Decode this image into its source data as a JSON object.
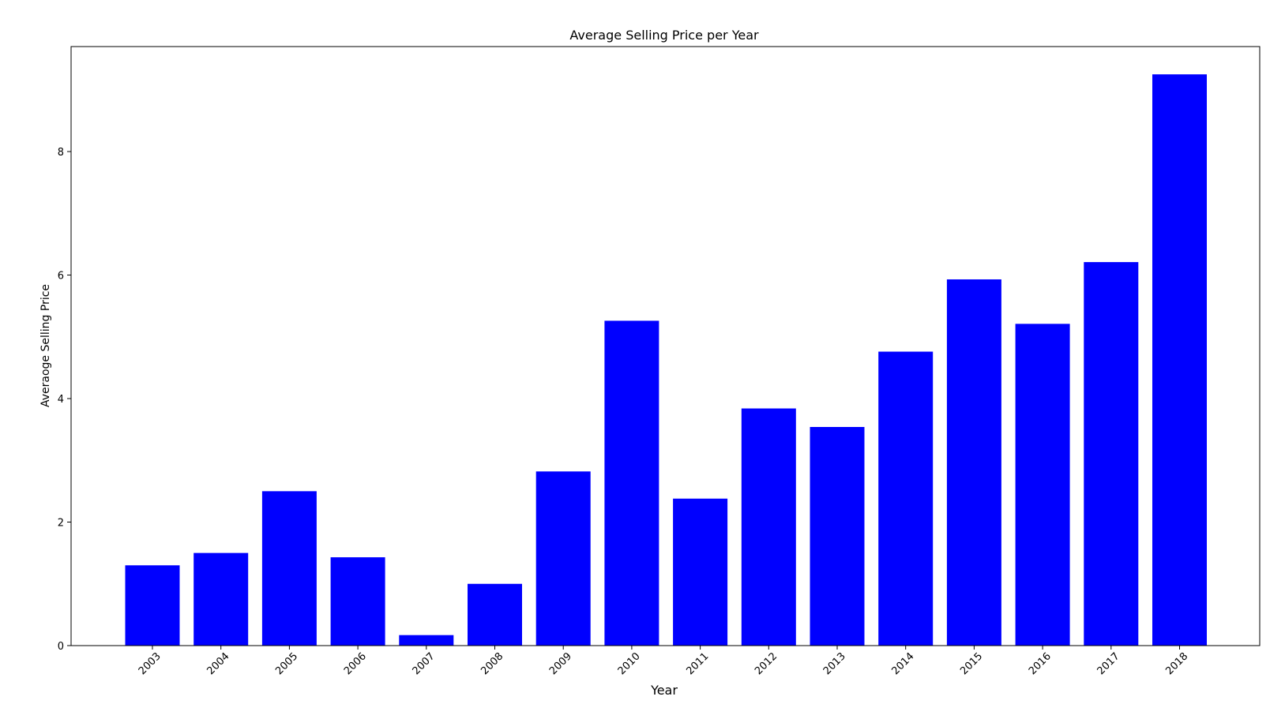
{
  "chart_data": {
    "type": "bar",
    "title": "Average Selling Price per Year",
    "xlabel": "Year",
    "ylabel": "Averaoge Selling Price",
    "categories": [
      "2003",
      "2004",
      "2005",
      "2006",
      "2007",
      "2008",
      "2009",
      "2010",
      "2011",
      "2012",
      "2013",
      "2014",
      "2015",
      "2016",
      "2017",
      "2018"
    ],
    "values": [
      1.3,
      1.5,
      2.5,
      1.43,
      0.17,
      1.0,
      2.82,
      5.26,
      2.38,
      3.84,
      3.54,
      4.76,
      5.93,
      5.21,
      6.21,
      9.25
    ],
    "yticks": [
      0,
      2,
      4,
      6,
      8
    ],
    "ylim": [
      0,
      9.7
    ],
    "bar_color": "#0000ff",
    "grid": false,
    "legend": "none"
  }
}
